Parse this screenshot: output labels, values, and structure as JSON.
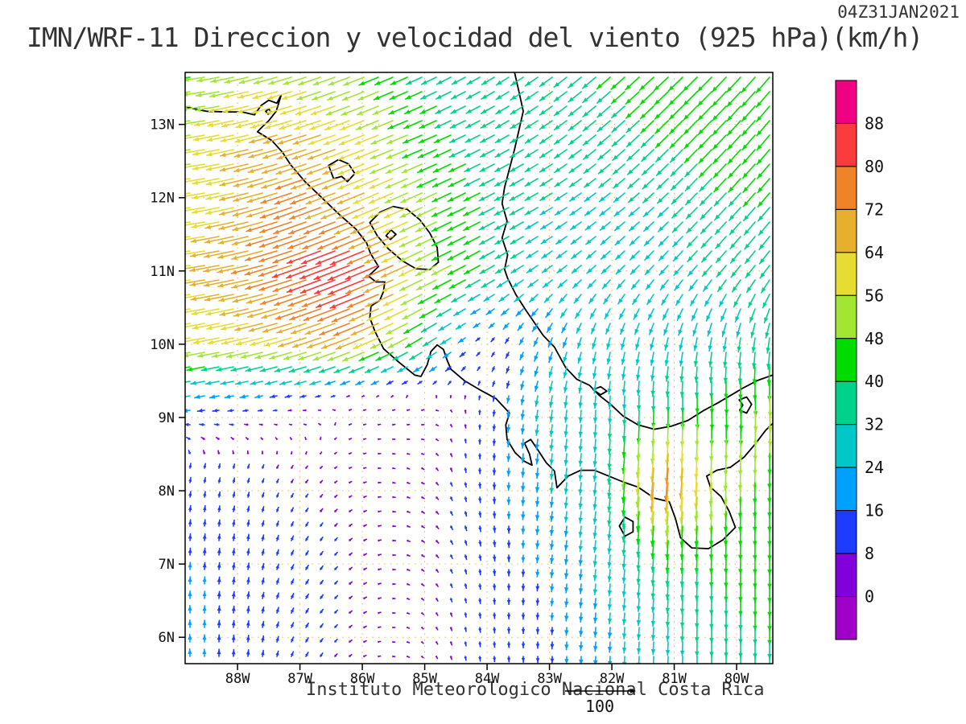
{
  "header": {
    "timestamp": "04Z31JAN2021",
    "title": "IMN/WRF-11 Direccion y velocidad del viento (925 hPa)(km/h)"
  },
  "footer": {
    "credit": "Instituto Meteorologico Nacional Costa Rica",
    "reference_value": "100"
  },
  "chart_data": {
    "type": "vector-field-map",
    "title": "IMN/WRF-11 Direccion y velocidad del viento (925 hPa)(km/h)",
    "valid_time": "04Z31JAN2021",
    "units": "km/h",
    "level": "925 hPa",
    "grid_on": true,
    "legend_position": "right",
    "lon_range": [
      -88.84,
      -79.42
    ],
    "lat_range": [
      5.64,
      13.71
    ],
    "x_ticks": [
      "88W",
      "87W",
      "86W",
      "85W",
      "84W",
      "83W",
      "82W",
      "81W",
      "80W"
    ],
    "x_tick_lons": [
      -88,
      -87,
      -86,
      -85,
      -84,
      -83,
      -82,
      -81,
      -80
    ],
    "y_ticks": [
      "13N",
      "12N",
      "11N",
      "10N",
      "9N",
      "8N",
      "7N",
      "6N"
    ],
    "y_tick_lats": [
      13,
      12,
      11,
      10,
      9,
      8,
      7,
      6
    ],
    "reference_arrow_kmh": 100,
    "colorbar": {
      "values": [
        0,
        8,
        16,
        24,
        32,
        40,
        48,
        56,
        64,
        72,
        80,
        88
      ],
      "colors": [
        "#a000c8",
        "#8200dc",
        "#1e3cff",
        "#00a0ff",
        "#00c8c8",
        "#00d28c",
        "#00dc00",
        "#a0e632",
        "#e6dc32",
        "#e6af2d",
        "#f08228",
        "#fa3c3c",
        "#f00082"
      ]
    },
    "wind_grid": {
      "lons": [
        -88.8,
        -87.85,
        -86.9,
        -85.95,
        -85.0,
        -84.05,
        -83.1,
        -82.15,
        -81.2,
        -80.25,
        -79.3
      ],
      "lats": [
        13.7,
        12.8,
        11.9,
        11.0,
        10.1,
        9.2,
        8.3,
        7.4,
        6.5,
        5.6
      ],
      "u": [
        [
          -45,
          -52,
          -50,
          -45,
          -34,
          -28,
          -28,
          -30,
          -32,
          -32,
          -30
        ],
        [
          -54,
          -62,
          -64,
          -56,
          -42,
          -32,
          -28,
          -28,
          -28,
          -30,
          -28
        ],
        [
          -56,
          -64,
          -72,
          -60,
          -48,
          -36,
          -28,
          -24,
          -23,
          -26,
          -26
        ],
        [
          -63,
          -69,
          -76,
          -83,
          -50,
          -34,
          -23,
          -19,
          -19,
          -21,
          -21
        ],
        [
          -57,
          -59,
          -63,
          -64,
          -36,
          -7,
          -9,
          -7,
          -7,
          -5,
          -5
        ],
        [
          -20,
          -13,
          -7,
          4,
          5,
          -1,
          -4,
          -1,
          0,
          2,
          2
        ],
        [
          2,
          3,
          4,
          5,
          5,
          0,
          -2,
          -3,
          -6,
          -2,
          0
        ],
        [
          1,
          2,
          5,
          6,
          6,
          2,
          -2,
          -3,
          -3,
          -1,
          0
        ],
        [
          0,
          2,
          6,
          6,
          4,
          1,
          -1,
          -2,
          -2,
          0,
          0
        ],
        [
          -1,
          1,
          5,
          5,
          3,
          1,
          0,
          -1,
          -1,
          0,
          0
        ]
      ],
      "v": [
        [
          -5,
          -12,
          -16,
          -18,
          -16,
          -16,
          -20,
          -26,
          -30,
          -33,
          -36
        ],
        [
          -8,
          -14,
          -20,
          -22,
          -18,
          -16,
          -18,
          -23,
          -28,
          -32,
          -34
        ],
        [
          -7,
          -16,
          -26,
          -25,
          -22,
          -18,
          -16,
          -18,
          -21,
          -28,
          -31
        ],
        [
          -9,
          -15,
          -27,
          -34,
          -24,
          -19,
          -16,
          -18,
          -21,
          -25,
          -29
        ],
        [
          -10,
          -13,
          -20,
          -26,
          -22,
          -6,
          -20,
          -25,
          -27,
          -30,
          -35
        ],
        [
          -4,
          -3,
          -1,
          1,
          2,
          -10,
          -26,
          -29,
          -38,
          -44,
          -52
        ],
        [
          11,
          9,
          5,
          1,
          -3,
          -13,
          -24,
          -30,
          -78,
          -52,
          -46
        ],
        [
          15,
          14,
          9,
          3,
          -4,
          -13,
          -19,
          -28,
          -44,
          -44,
          -46
        ],
        [
          17,
          15,
          10,
          3,
          -4,
          -12,
          -15,
          -24,
          -32,
          -39,
          -43
        ],
        [
          17,
          15,
          9,
          2,
          -3,
          -11,
          -14,
          -21,
          -28,
          -33,
          -38
        ]
      ]
    }
  },
  "map": {
    "gridline_color": "#e6af2d",
    "coastline_color": "#000000",
    "coastlines": [
      {
        "closed": false,
        "points": [
          [
            -88.84,
            13.24
          ],
          [
            -88.5,
            13.18
          ],
          [
            -88.15,
            13.17
          ],
          [
            -87.92,
            13.17
          ],
          [
            -87.73,
            13.13
          ],
          [
            -87.62,
            13.26
          ],
          [
            -87.5,
            13.33
          ],
          [
            -87.37,
            13.29
          ],
          [
            -87.3,
            13.4
          ],
          [
            -87.38,
            13.18
          ],
          [
            -87.5,
            13.05
          ],
          [
            -87.6,
            12.97
          ],
          [
            -87.68,
            12.9
          ],
          [
            -87.45,
            12.78
          ],
          [
            -87.28,
            12.62
          ],
          [
            -87.15,
            12.45
          ],
          [
            -86.92,
            12.22
          ],
          [
            -86.65,
            12.0
          ],
          [
            -86.38,
            11.78
          ],
          [
            -86.1,
            11.57
          ],
          [
            -85.93,
            11.38
          ],
          [
            -85.87,
            11.24
          ],
          [
            -85.74,
            11.06
          ],
          [
            -85.9,
            10.93
          ],
          [
            -85.78,
            10.85
          ],
          [
            -85.64,
            10.85
          ],
          [
            -85.66,
            10.72
          ],
          [
            -85.72,
            10.6
          ],
          [
            -85.86,
            10.52
          ],
          [
            -85.88,
            10.36
          ],
          [
            -85.8,
            10.18
          ],
          [
            -85.66,
            9.94
          ],
          [
            -85.42,
            9.76
          ],
          [
            -85.16,
            9.58
          ],
          [
            -85.06,
            9.56
          ],
          [
            -84.96,
            9.72
          ],
          [
            -84.9,
            9.9
          ],
          [
            -84.8,
            9.99
          ],
          [
            -84.7,
            9.93
          ],
          [
            -84.64,
            9.78
          ],
          [
            -84.58,
            9.66
          ],
          [
            -84.36,
            9.5
          ],
          [
            -84.12,
            9.38
          ],
          [
            -83.86,
            9.26
          ],
          [
            -83.64,
            9.06
          ],
          [
            -83.7,
            8.9
          ],
          [
            -83.68,
            8.7
          ],
          [
            -83.55,
            8.52
          ],
          [
            -83.4,
            8.4
          ],
          [
            -83.28,
            8.35
          ],
          [
            -83.32,
            8.5
          ],
          [
            -83.4,
            8.65
          ],
          [
            -83.3,
            8.7
          ],
          [
            -83.18,
            8.55
          ],
          [
            -83.05,
            8.38
          ],
          [
            -82.92,
            8.27
          ],
          [
            -82.88,
            8.04
          ],
          [
            -82.7,
            8.2
          ],
          [
            -82.5,
            8.28
          ],
          [
            -82.28,
            8.28
          ],
          [
            -82.05,
            8.2
          ],
          [
            -81.82,
            8.12
          ],
          [
            -81.58,
            8.05
          ],
          [
            -81.32,
            7.9
          ],
          [
            -81.08,
            7.85
          ],
          [
            -80.98,
            7.62
          ],
          [
            -80.9,
            7.36
          ],
          [
            -80.72,
            7.22
          ],
          [
            -80.45,
            7.21
          ],
          [
            -80.22,
            7.33
          ],
          [
            -80.02,
            7.5
          ],
          [
            -80.12,
            7.72
          ],
          [
            -80.25,
            7.92
          ],
          [
            -80.42,
            8.05
          ],
          [
            -80.48,
            8.2
          ],
          [
            -80.32,
            8.28
          ],
          [
            -80.1,
            8.32
          ],
          [
            -79.88,
            8.46
          ],
          [
            -79.7,
            8.64
          ],
          [
            -79.54,
            8.82
          ],
          [
            -79.42,
            8.92
          ]
        ]
      },
      {
        "closed": false,
        "points": [
          [
            -83.56,
            13.71
          ],
          [
            -83.49,
            13.45
          ],
          [
            -83.42,
            13.18
          ],
          [
            -83.49,
            12.92
          ],
          [
            -83.56,
            12.66
          ],
          [
            -83.64,
            12.4
          ],
          [
            -83.72,
            12.14
          ],
          [
            -83.76,
            11.92
          ],
          [
            -83.68,
            11.68
          ],
          [
            -83.76,
            11.45
          ],
          [
            -83.67,
            11.22
          ],
          [
            -83.72,
            11.02
          ],
          [
            -83.67,
            10.9
          ],
          [
            -83.54,
            10.68
          ],
          [
            -83.36,
            10.44
          ],
          [
            -83.1,
            10.12
          ],
          [
            -82.92,
            9.96
          ],
          [
            -82.74,
            9.68
          ],
          [
            -82.56,
            9.52
          ],
          [
            -82.36,
            9.44
          ],
          [
            -82.2,
            9.3
          ],
          [
            -82.02,
            9.18
          ],
          [
            -81.82,
            9.02
          ],
          [
            -81.58,
            8.9
          ],
          [
            -81.32,
            8.84
          ],
          [
            -81.05,
            8.88
          ],
          [
            -80.78,
            8.96
          ],
          [
            -80.52,
            9.1
          ],
          [
            -80.3,
            9.2
          ],
          [
            -80.1,
            9.3
          ],
          [
            -79.9,
            9.4
          ],
          [
            -79.68,
            9.5
          ],
          [
            -79.42,
            9.58
          ]
        ]
      },
      {
        "closed": true,
        "points": [
          [
            -85.88,
            11.66
          ],
          [
            -85.72,
            11.8
          ],
          [
            -85.5,
            11.88
          ],
          [
            -85.28,
            11.84
          ],
          [
            -85.08,
            11.7
          ],
          [
            -84.92,
            11.52
          ],
          [
            -84.8,
            11.32
          ],
          [
            -84.78,
            11.12
          ],
          [
            -84.92,
            11.02
          ],
          [
            -85.14,
            11.03
          ],
          [
            -85.36,
            11.14
          ],
          [
            -85.58,
            11.3
          ],
          [
            -85.76,
            11.48
          ]
        ]
      },
      {
        "closed": true,
        "points": [
          [
            -85.62,
            11.48
          ],
          [
            -85.54,
            11.56
          ],
          [
            -85.46,
            11.5
          ],
          [
            -85.55,
            11.43
          ]
        ]
      },
      {
        "closed": true,
        "points": [
          [
            -86.54,
            12.44
          ],
          [
            -86.38,
            12.52
          ],
          [
            -86.22,
            12.46
          ],
          [
            -86.12,
            12.33
          ],
          [
            -86.24,
            12.22
          ],
          [
            -86.33,
            12.29
          ],
          [
            -86.46,
            12.26
          ]
        ]
      },
      {
        "closed": true,
        "points": [
          [
            -81.88,
            7.52
          ],
          [
            -81.79,
            7.64
          ],
          [
            -81.66,
            7.58
          ],
          [
            -81.66,
            7.44
          ],
          [
            -81.79,
            7.38
          ]
        ]
      },
      {
        "closed": true,
        "points": [
          [
            -79.96,
            9.24
          ],
          [
            -79.84,
            9.28
          ],
          [
            -79.76,
            9.18
          ],
          [
            -79.84,
            9.06
          ],
          [
            -79.95,
            9.1
          ],
          [
            -79.9,
            9.17
          ]
        ]
      },
      {
        "closed": true,
        "points": [
          [
            -82.3,
            9.38
          ],
          [
            -82.18,
            9.42
          ],
          [
            -82.08,
            9.36
          ],
          [
            -82.18,
            9.31
          ]
        ]
      },
      {
        "closed": true,
        "points": [
          [
            -87.55,
            13.18
          ],
          [
            -87.5,
            13.21
          ],
          [
            -87.46,
            13.17
          ],
          [
            -87.51,
            13.14
          ]
        ]
      }
    ]
  }
}
